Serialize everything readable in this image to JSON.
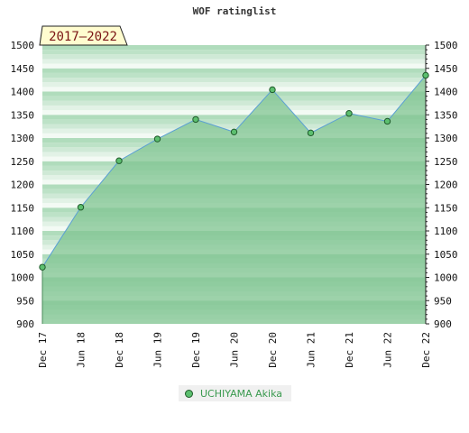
{
  "chart_data": {
    "type": "area",
    "title": "WOF ratinglist",
    "badge": "2017–2022",
    "x_labels": [
      "Dec 17",
      "Jun 18",
      "Dec 18",
      "Jun 19",
      "Dec 19",
      "Jun 20",
      "Dec 20",
      "Jun 21",
      "Dec 21",
      "Jun 22",
      "Dec 22"
    ],
    "series": [
      {
        "name": "UCHIYAMA Akika",
        "values": [
          1022,
          1151,
          1251,
          1298,
          1340,
          1313,
          1404,
          1311,
          1353,
          1336,
          1435
        ]
      }
    ],
    "ylim": [
      900,
      1500
    ],
    "yticks": [
      900,
      950,
      1000,
      1050,
      1100,
      1150,
      1200,
      1250,
      1300,
      1350,
      1400,
      1450,
      1500
    ],
    "colors": {
      "line": "#5a9fd4",
      "fill": "#80c491",
      "marker": "#5cbf6f",
      "marker_edge": "#1f5a2a"
    },
    "legend_position": "bottom-center",
    "grid": true
  }
}
